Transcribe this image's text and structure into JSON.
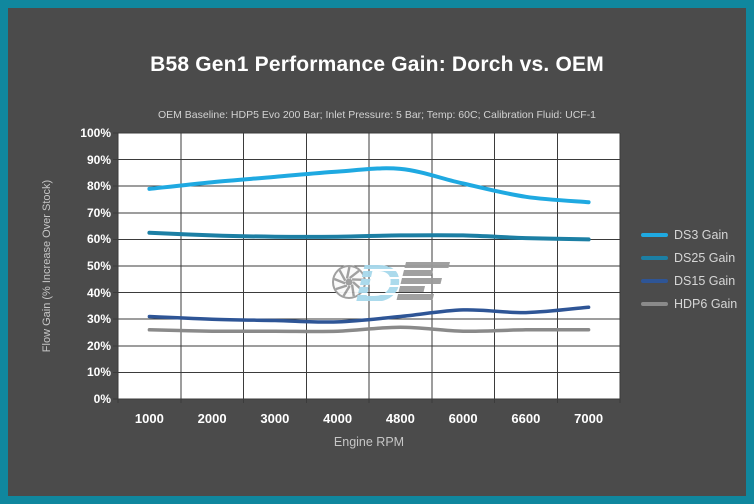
{
  "frame": {
    "border_color": "#10879E",
    "background_color": "#4B4B4B",
    "title_color": "#FFFFFF",
    "muted_text_color": "#C6C6C6",
    "tick_text_color": "#FFFFFF"
  },
  "chart_data": {
    "type": "line",
    "title": "B58 Gen1 Performance Gain: Dorch vs. OEM",
    "subtitle": "OEM Baseline: HDP5 Evo 200 Bar; Inlet Pressure: 5 Bar; Temp: 60C; Calibration Fluid: UCF-1",
    "xlabel": "Engine RPM",
    "ylabel": "Flow Gain (% Increase Over Stock)",
    "categories": [
      "1000",
      "2000",
      "3000",
      "4000",
      "4800",
      "6000",
      "6600",
      "7000"
    ],
    "ylim": [
      0,
      100
    ],
    "ytick_values": [
      0,
      10,
      20,
      30,
      40,
      50,
      60,
      70,
      80,
      90,
      100
    ],
    "ytick_labels": [
      "0%",
      "10%",
      "20%",
      "30%",
      "40%",
      "50%",
      "60%",
      "70%",
      "80%",
      "90%",
      "100%"
    ],
    "grid": true,
    "plot_background": "#FFFFFF",
    "gridline_color": "#3B3B3B",
    "legend_position": "right",
    "series": [
      {
        "name": "DS3 Gain",
        "color": "#1FA9E1",
        "width": 4,
        "values": [
          79,
          81.5,
          83.5,
          85.5,
          86.5,
          81,
          76,
          74
        ]
      },
      {
        "name": "DS25 Gain",
        "color": "#1C7FA4",
        "width": 4,
        "values": [
          62.5,
          61.5,
          61,
          61,
          61.5,
          61.5,
          60.5,
          60
        ]
      },
      {
        "name": "DS15 Gain",
        "color": "#2E5596",
        "width": 3.5,
        "values": [
          31,
          30,
          29.5,
          29,
          31,
          33.5,
          32.5,
          34.5
        ]
      },
      {
        "name": "HDP6 Gain",
        "color": "#8A8A8A",
        "width": 3.5,
        "values": [
          26,
          25.5,
          25.5,
          25.5,
          27,
          25.5,
          26,
          26
        ]
      }
    ],
    "watermark": {
      "name": "dorch-engineering-logo",
      "letters": "DE",
      "d_color": "#A7D9EC",
      "gray_color": "#9B9B9B"
    }
  }
}
